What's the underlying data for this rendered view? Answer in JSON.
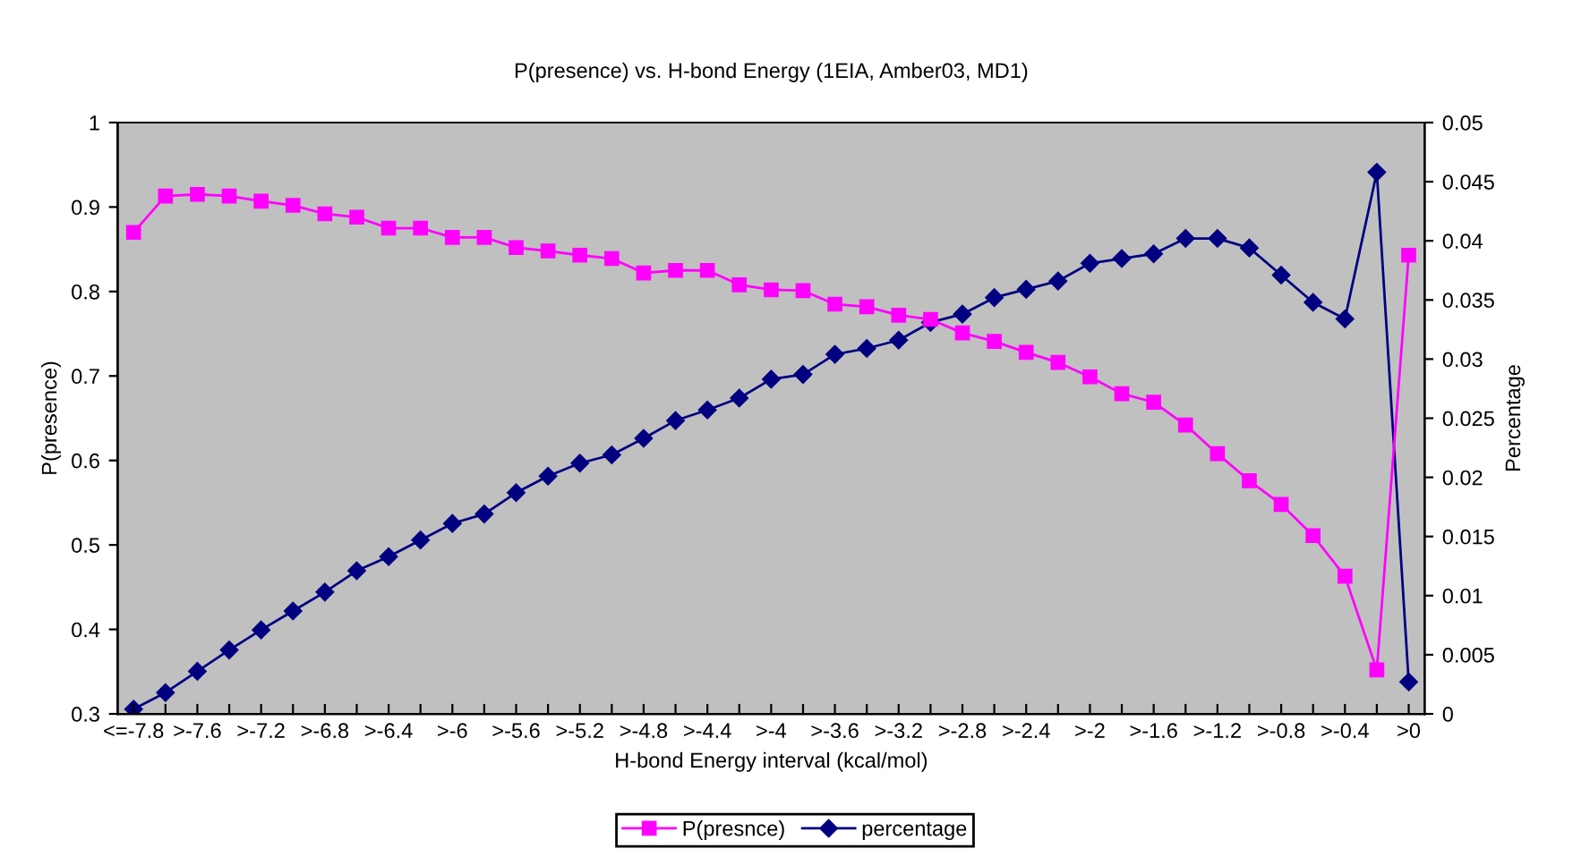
{
  "chart_data": {
    "type": "line",
    "title": "P(presence) vs. H-bond Energy (1EIA, Amber03, MD1)",
    "xlabel": "H-bond Energy interval (kcal/mol)",
    "ylabel": "P(presence)",
    "y2label": "Percentage",
    "categories": [
      "<=-7.8",
      null,
      ">-7.6",
      null,
      ">-7.2",
      null,
      ">-6.8",
      null,
      ">-6.4",
      null,
      ">-6",
      null,
      ">-5.6",
      null,
      ">-5.2",
      null,
      ">-4.8",
      null,
      ">-4.4",
      null,
      ">-4",
      null,
      ">-3.6",
      null,
      ">-3.2",
      null,
      ">-2.8",
      null,
      ">-2.4",
      null,
      ">-2",
      null,
      ">-1.6",
      null,
      ">-1.2",
      null,
      ">-0.8",
      null,
      ">-0.4",
      null,
      ">0"
    ],
    "series": [
      {
        "name": "P(presnce)",
        "color": "#ff00ff",
        "marker": "square",
        "values": [
          0.87,
          0.913,
          0.915,
          0.913,
          0.907,
          0.902,
          0.892,
          0.888,
          0.875,
          0.875,
          0.864,
          0.864,
          0.852,
          0.848,
          0.843,
          0.839,
          0.822,
          0.825,
          0.825,
          0.808,
          0.802,
          0.801,
          0.785,
          0.782,
          0.772,
          0.767,
          0.751,
          0.741,
          0.728,
          0.716,
          0.699,
          0.679,
          0.669,
          0.642,
          0.608,
          0.576,
          0.548,
          0.511,
          0.463,
          0.352,
          0.843
        ]
      },
      {
        "name": "percentage",
        "color": "#000080",
        "marker": "diamond",
        "axis": "y2",
        "values": [
          0.0004,
          0.0018,
          0.0036,
          0.0054,
          0.0071,
          0.0087,
          0.0103,
          0.0121,
          0.0133,
          0.0147,
          0.0161,
          0.0169,
          0.0187,
          0.0201,
          0.0212,
          0.0219,
          0.0233,
          0.0248,
          0.0257,
          0.0267,
          0.0283,
          0.0287,
          0.0304,
          0.0309,
          0.0316,
          0.0331,
          0.0338,
          0.0352,
          0.0359,
          0.0366,
          0.0381,
          0.0385,
          0.0389,
          0.0402,
          0.0402,
          0.0394,
          0.0371,
          0.0348,
          0.0334,
          0.0458,
          0.0027
        ]
      }
    ],
    "ylim": [
      0.3,
      1
    ],
    "yticks": [
      0.3,
      0.4,
      0.5,
      0.6,
      0.7,
      0.8,
      0.9,
      1
    ],
    "y2lim": [
      0,
      0.05
    ],
    "y2ticks": [
      0,
      0.005,
      0.01,
      0.015,
      0.02,
      0.025,
      0.03,
      0.035,
      0.04,
      0.045,
      0.05
    ],
    "grid": false,
    "legend": "bottom",
    "line_style": "solid"
  }
}
